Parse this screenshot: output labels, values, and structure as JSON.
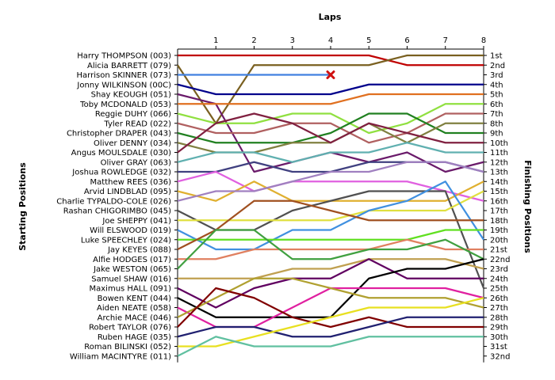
{
  "chart_data": {
    "type": "line",
    "title": "Laps",
    "ylabel_left": "Starting Positions",
    "ylabel_right": "Finishing Positions",
    "x": [
      0,
      1,
      2,
      3,
      4,
      5,
      6,
      7,
      8
    ],
    "x_tick_labels": [
      "1",
      "2",
      "3",
      "4",
      "5",
      "6",
      "7",
      "8"
    ],
    "position_range": [
      1,
      32
    ],
    "grid": false,
    "retired_marker": {
      "series": "Harrison SKINNER (073)",
      "lap": 4,
      "position": 3,
      "symbol": "red-x"
    },
    "starting_labels": [
      "Harry THOMPSON (003)",
      "Alicia BARRETT (079)",
      "Harrison SKINNER (073)",
      "Jonny WILKINSON (00C)",
      "Shay KEOUGH (051)",
      "Toby MCDONALD (053)",
      "Reggie DUHY (066)",
      "Tyler READ (022)",
      "Christopher DRAPER (043)",
      "Oliver DENNY (034)",
      "Angus MOULSDALE (030)",
      "Oliver GRAY (063)",
      "Joshua ROWLEDGE (032)",
      "Matthew REES (036)",
      "Arvid LINDBLAD (095)",
      "Charlie TYPALDO-COLE (026)",
      "Rashan CHIGORIMBO (045)",
      "Joe SHEPPY (041)",
      "Will ELSWOOD (019)",
      "Luke SPEECHLEY (024)",
      "Jay KEYES (088)",
      "Alfie HODGES (017)",
      "Jake WESTON (065)",
      "Samuel SHAW (016)",
      "Maximus HALL (091)",
      "Bowen KENT (044)",
      "Aiden NEATE (058)",
      "Archie MACE (046)",
      "Robert TAYLOR (076)",
      "Ruben HAGE (035)",
      "Roman BILINSKI (052)",
      "William MACINTYRE (011)"
    ],
    "finishing_labels": [
      "1st",
      "2nd",
      "3rd",
      "4th",
      "5th",
      "6th",
      "7th",
      "8th",
      "9th",
      "10th",
      "11th",
      "12th",
      "13th",
      "14th",
      "15th",
      "16th",
      "17th",
      "18th",
      "19th",
      "20th",
      "21st",
      "22nd",
      "23rd",
      "24th",
      "25th",
      "26th",
      "27th",
      "28th",
      "29th",
      "30th",
      "31st",
      "32nd"
    ],
    "series": [
      {
        "color": "#c00000",
        "positions": [
          1,
          1,
          1,
          1,
          1,
          1,
          2,
          2,
          2
        ]
      },
      {
        "color": "#7a6020",
        "positions": [
          2,
          8,
          2,
          2,
          2,
          2,
          1,
          1,
          1
        ]
      },
      {
        "color": "#4080e0",
        "positions": [
          3,
          3,
          3,
          3,
          3
        ]
      },
      {
        "color": "#00008b",
        "positions": [
          4,
          5,
          5,
          5,
          5,
          4,
          4,
          4,
          4
        ]
      },
      {
        "color": "#6a1a6a",
        "positions": [
          5,
          6,
          13,
          12,
          11,
          12,
          11,
          13,
          12
        ]
      },
      {
        "color": "#e07020",
        "positions": [
          6,
          6,
          6,
          6,
          6,
          5,
          5,
          5,
          5
        ]
      },
      {
        "color": "#90e040",
        "positions": [
          7,
          8,
          8,
          7,
          7,
          9,
          8,
          6,
          6
        ]
      },
      {
        "color": "#b06060",
        "positions": [
          8,
          9,
          9,
          8,
          8,
          10,
          9,
          7,
          7
        ]
      },
      {
        "color": "#208020",
        "positions": [
          9,
          10,
          10,
          10,
          9,
          7,
          7,
          9,
          9
        ]
      },
      {
        "color": "#808040",
        "positions": [
          10,
          11,
          11,
          10,
          10,
          8,
          10,
          8,
          8
        ]
      },
      {
        "color": "#802040",
        "positions": [
          11,
          8,
          7,
          8,
          10,
          8,
          9,
          10,
          10
        ]
      },
      {
        "color": "#60b0b0",
        "positions": [
          12,
          11,
          11,
          12,
          11,
          11,
          10,
          11,
          11
        ]
      },
      {
        "color": "#404080",
        "positions": [
          13,
          13,
          12,
          13,
          13,
          12,
          12,
          12,
          13
        ]
      },
      {
        "color": "#e060e0",
        "positions": [
          14,
          13,
          15,
          14,
          14,
          14,
          14,
          15,
          16
        ]
      },
      {
        "color": "#e0b030",
        "positions": [
          15,
          16,
          14,
          16,
          16,
          16,
          16,
          16,
          14
        ]
      },
      {
        "color": "#a080c0",
        "positions": [
          16,
          15,
          15,
          14,
          13,
          13,
          12,
          12,
          13
        ]
      },
      {
        "color": "#505050",
        "positions": [
          17,
          19,
          19,
          17,
          16,
          15,
          15,
          15,
          25
        ]
      },
      {
        "color": "#e0e040",
        "positions": [
          18,
          18,
          18,
          18,
          18,
          17,
          17,
          17,
          15
        ]
      },
      {
        "color": "#4090e0",
        "positions": [
          19,
          21,
          21,
          19,
          19,
          17,
          16,
          14,
          20
        ]
      },
      {
        "color": "#60e020",
        "positions": [
          20,
          20,
          20,
          20,
          20,
          20,
          20,
          19,
          19
        ]
      },
      {
        "color": "#a05020",
        "positions": [
          21,
          19,
          16,
          16,
          17,
          18,
          18,
          18,
          18
        ]
      },
      {
        "color": "#e08060",
        "positions": [
          22,
          22,
          21,
          21,
          21,
          21,
          20,
          21,
          21
        ]
      },
      {
        "color": "#40a040",
        "positions": [
          23,
          19,
          19,
          22,
          22,
          21,
          21,
          20,
          22
        ]
      },
      {
        "color": "#c0a050",
        "positions": [
          24,
          24,
          24,
          23,
          23,
          22,
          22,
          22,
          23
        ]
      },
      {
        "color": "#600060",
        "positions": [
          25,
          27,
          25,
          24,
          24,
          22,
          24,
          24,
          24
        ]
      },
      {
        "color": "#000000",
        "positions": [
          26,
          28,
          28,
          28,
          28,
          24,
          23,
          23,
          22
        ]
      },
      {
        "color": "#e020a0",
        "positions": [
          27,
          29,
          29,
          27,
          25,
          25,
          25,
          25,
          26
        ]
      },
      {
        "color": "#b0a030",
        "positions": [
          28,
          26,
          24,
          24,
          25,
          26,
          26,
          26,
          27
        ]
      },
      {
        "color": "#800000",
        "positions": [
          29,
          25,
          26,
          28,
          29,
          28,
          29,
          29,
          29
        ]
      },
      {
        "color": "#202070",
        "positions": [
          30,
          29,
          29,
          30,
          30,
          29,
          28,
          28,
          28
        ]
      },
      {
        "color": "#e8e020",
        "positions": [
          31,
          31,
          30,
          29,
          28,
          27,
          27,
          27,
          26
        ]
      },
      {
        "color": "#60c0a0",
        "positions": [
          32,
          30,
          31,
          31,
          31,
          30,
          30,
          30,
          30
        ]
      }
    ]
  }
}
